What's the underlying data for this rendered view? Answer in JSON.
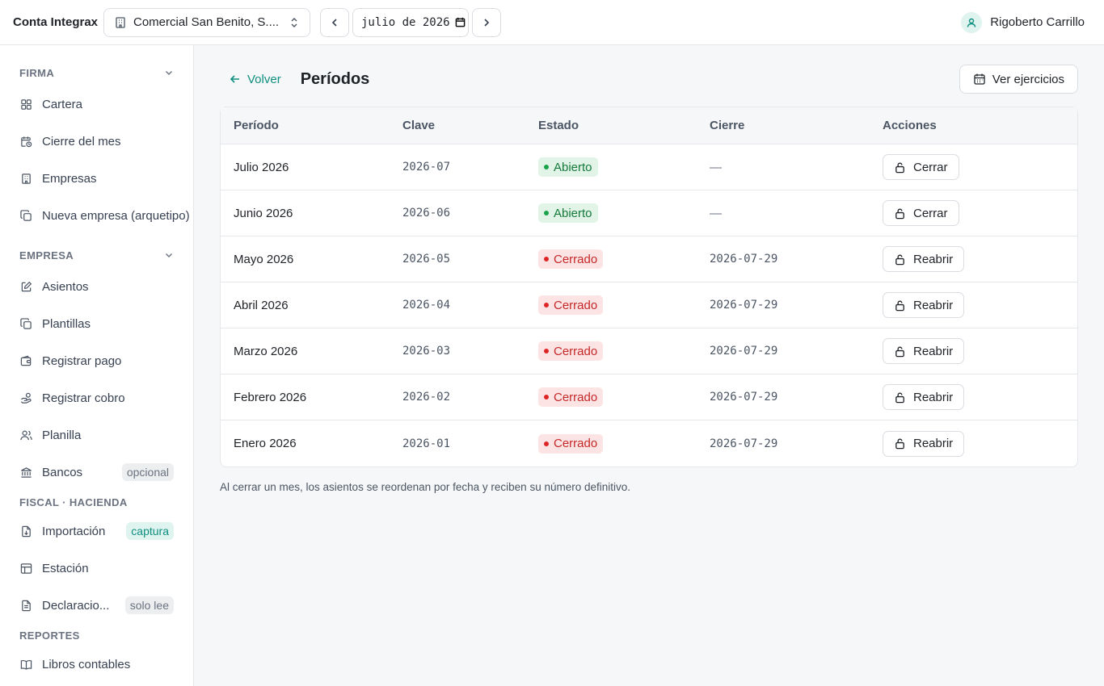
{
  "topbar": {
    "brand": "Conta Integrax",
    "company": "Comercial San Benito, S....",
    "date_value": "julio de 2026",
    "user_name": "Rigoberto Carrillo"
  },
  "sidebar": {
    "sections": [
      {
        "title": "FIRMA",
        "collapsible": true,
        "items": [
          {
            "label": "Cartera",
            "icon": "grid-icon"
          },
          {
            "label": "Cierre del mes",
            "icon": "calendar-clock-icon"
          },
          {
            "label": "Empresas",
            "icon": "building-icon"
          },
          {
            "label": "Nueva empresa (arquetipo)",
            "icon": "copy-icon"
          }
        ]
      },
      {
        "title": "EMPRESA",
        "collapsible": true,
        "items": [
          {
            "label": "Asientos",
            "icon": "edit-icon"
          },
          {
            "label": "Plantillas",
            "icon": "copy-icon"
          },
          {
            "label": "Registrar pago",
            "icon": "wallet-icon"
          },
          {
            "label": "Registrar cobro",
            "icon": "hand-coins-icon"
          },
          {
            "label": "Planilla",
            "icon": "users-icon"
          },
          {
            "label": "Bancos",
            "icon": "bank-icon",
            "badge": "opcional",
            "badge_style": "gray"
          }
        ]
      },
      {
        "title": "FISCAL · HACIENDA",
        "collapsible": false,
        "items": [
          {
            "label": "Importación",
            "icon": "file-import-icon",
            "badge": "captura",
            "badge_style": "teal"
          },
          {
            "label": "Estación",
            "icon": "table-icon"
          },
          {
            "label": "Declaraciones",
            "display": "Declaracio...",
            "icon": "file-text-icon",
            "badge": "solo lee",
            "badge_style": "gray"
          }
        ]
      },
      {
        "title": "REPORTES",
        "collapsible": false,
        "items": [
          {
            "label": "Libros contables",
            "icon": "book-icon"
          }
        ]
      }
    ]
  },
  "page": {
    "back_label": "Volver",
    "title": "Períodos",
    "ver_ejercicios_label": "Ver ejercicios",
    "footnote": "Al cerrar un mes, los asientos se reordenan por fecha y reciben su número definitivo."
  },
  "table": {
    "columns": [
      "Período",
      "Clave",
      "Estado",
      "Cierre",
      "Acciones"
    ],
    "rows": [
      {
        "periodo": "Julio 2026",
        "clave": "2026-07",
        "estado": "Abierto",
        "estado_type": "open",
        "cierre": "—",
        "accion": "Cerrar"
      },
      {
        "periodo": "Junio 2026",
        "clave": "2026-06",
        "estado": "Abierto",
        "estado_type": "open",
        "cierre": "—",
        "accion": "Cerrar"
      },
      {
        "periodo": "Mayo 2026",
        "clave": "2026-05",
        "estado": "Cerrado",
        "estado_type": "closed",
        "cierre": "2026-07-29",
        "accion": "Reabrir"
      },
      {
        "periodo": "Abril 2026",
        "clave": "2026-04",
        "estado": "Cerrado",
        "estado_type": "closed",
        "cierre": "2026-07-29",
        "accion": "Reabrir"
      },
      {
        "periodo": "Marzo 2026",
        "clave": "2026-03",
        "estado": "Cerrado",
        "estado_type": "closed",
        "cierre": "2026-07-29",
        "accion": "Reabrir"
      },
      {
        "periodo": "Febrero 2026",
        "clave": "2026-02",
        "estado": "Cerrado",
        "estado_type": "closed",
        "cierre": "2026-07-29",
        "accion": "Reabrir"
      },
      {
        "periodo": "Enero 2026",
        "clave": "2026-01",
        "estado": "Cerrado",
        "estado_type": "closed",
        "cierre": "2026-07-29",
        "accion": "Reabrir"
      }
    ]
  },
  "colors": {
    "accent": "#0f8f80",
    "open_bg": "#e1f4e7",
    "open_text": "#157a3b",
    "closed_bg": "#fde4e4",
    "closed_text": "#c42828"
  }
}
